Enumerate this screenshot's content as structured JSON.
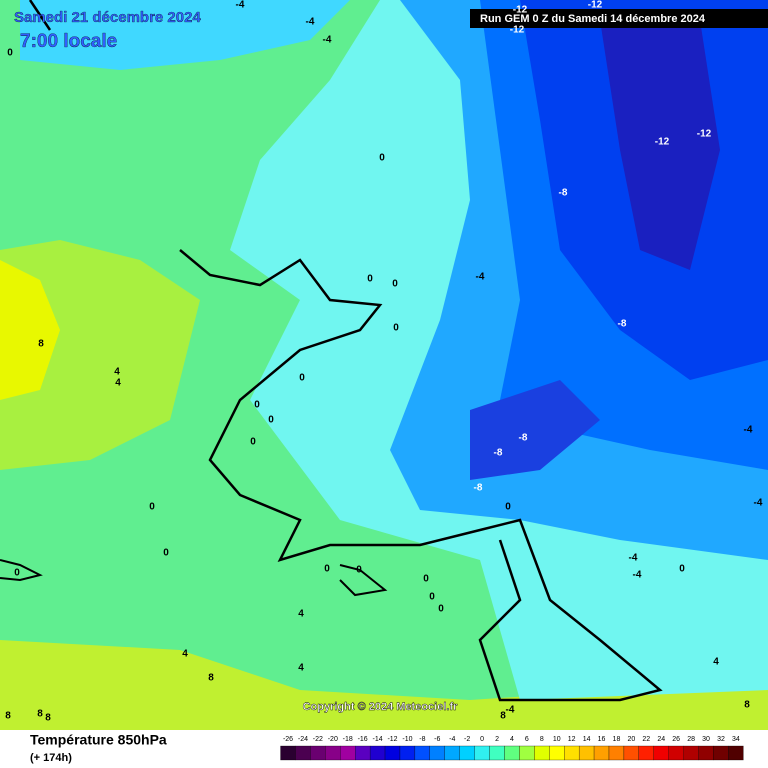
{
  "header": {
    "date": "Samedi 21 décembre 2024",
    "time": "7:00 locale",
    "run": "Run GEM 0 Z du Samedi 14 décembre 2024"
  },
  "copyright": "Copyright © 2024 Meteociel.fr",
  "footer": {
    "title": "Température 850hPa",
    "lead": "(+ 174h)"
  },
  "colorbar": {
    "ticks": [
      -26,
      -24,
      -22,
      -20,
      -18,
      -16,
      -14,
      -12,
      -10,
      -8,
      -6,
      -4,
      -2,
      0,
      2,
      4,
      6,
      8,
      10,
      12,
      14,
      16,
      18,
      20,
      22,
      24,
      26,
      28,
      30,
      32,
      34
    ],
    "colors": [
      "#2a0030",
      "#4b0050",
      "#6a0070",
      "#880088",
      "#a000a0",
      "#5a00c0",
      "#2000d0",
      "#0000e0",
      "#0020f0",
      "#0050ff",
      "#0080ff",
      "#00a8ff",
      "#00d0ff",
      "#30f0f0",
      "#40ffc0",
      "#60ff80",
      "#a0ff40",
      "#e0ff00",
      "#ffff00",
      "#ffe000",
      "#ffc000",
      "#ffa000",
      "#ff8000",
      "#ff5000",
      "#ff2000",
      "#f00000",
      "#d00000",
      "#b00000",
      "#900000",
      "#700000",
      "#500000"
    ]
  },
  "contour_labels": [
    "-4",
    "-4",
    "-4",
    "-4",
    "-4",
    "-4",
    "-4",
    "-4",
    "-4",
    "-12",
    "-12",
    "-12",
    "-12",
    "-12",
    "-8",
    "-8",
    "-8",
    "-8",
    "-8",
    "0",
    "0",
    "0",
    "0",
    "0",
    "0",
    "0",
    "0",
    "0",
    "0",
    "0",
    "0",
    "0",
    "0",
    "0",
    "0",
    "0",
    "0",
    "0",
    "4",
    "4",
    "4",
    "4",
    "4",
    "4",
    "8",
    "8",
    "8",
    "8",
    "8",
    "8",
    "8"
  ]
}
